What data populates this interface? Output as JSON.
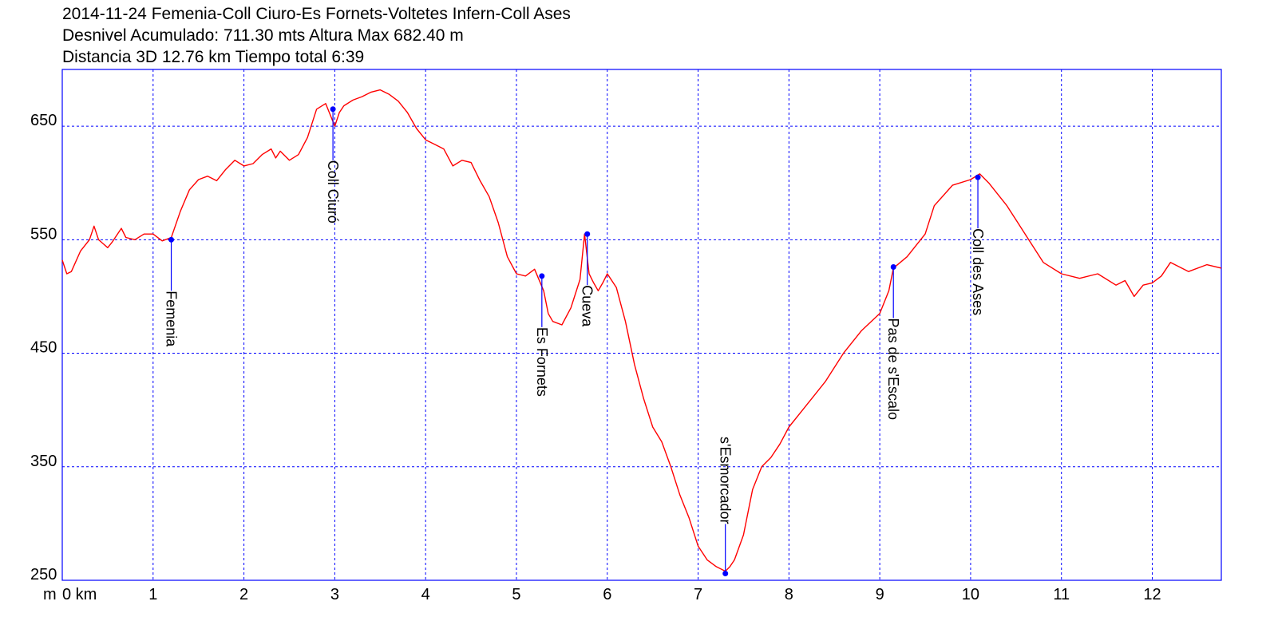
{
  "header": {
    "line1": "2014-11-24 Femenia-Coll Ciuro-Es Fornets-Voltetes Infern-Coll Ases",
    "line2": "Desnivel Acumulado: 711.30 mts  Altura Max 682.40 m",
    "line3": "Distancia 3D 12.76 km  Tiempo total 6:39"
  },
  "colors": {
    "frame": "#0000ff",
    "grid": "#0000ff",
    "profile": "#ff0000",
    "waypoint": "#0000ff",
    "text": "#000000"
  },
  "chart_data": {
    "type": "line",
    "title": "2014-11-24 Femenia-Coll Ciuro-Es Fornets-Voltetes Infern-Coll Ases",
    "xlabel": "km",
    "ylabel": "m",
    "xlim": [
      0,
      12.76
    ],
    "ylim": [
      250,
      700
    ],
    "grid": true,
    "y_ticks": [
      {
        "value": 250,
        "label": "250"
      },
      {
        "value": 350,
        "label": "350"
      },
      {
        "value": 450,
        "label": "450"
      },
      {
        "value": 550,
        "label": "550"
      },
      {
        "value": 650,
        "label": "650"
      }
    ],
    "x_ticks": [
      {
        "value": 0,
        "label": "0 km"
      },
      {
        "value": 1,
        "label": "1"
      },
      {
        "value": 2,
        "label": "2"
      },
      {
        "value": 3,
        "label": "3"
      },
      {
        "value": 4,
        "label": "4"
      },
      {
        "value": 5,
        "label": "5"
      },
      {
        "value": 6,
        "label": "6"
      },
      {
        "value": 7,
        "label": "7"
      },
      {
        "value": 8,
        "label": "8"
      },
      {
        "value": 9,
        "label": "9"
      },
      {
        "value": 10,
        "label": "10"
      },
      {
        "value": 11,
        "label": "11"
      },
      {
        "value": 12,
        "label": "12"
      }
    ],
    "series": [
      {
        "x": [
          0,
          0.05,
          0.1,
          0.2,
          0.3,
          0.35,
          0.4,
          0.5,
          0.55,
          0.6,
          0.65,
          0.7,
          0.8,
          0.9,
          1.0,
          1.1,
          1.2,
          1.3,
          1.4,
          1.5,
          1.6,
          1.7,
          1.8,
          1.9,
          2.0,
          2.1,
          2.2,
          2.3,
          2.35,
          2.4,
          2.5,
          2.6,
          2.7,
          2.8,
          2.9,
          2.95,
          3.0,
          3.05,
          3.1,
          3.2,
          3.3,
          3.4,
          3.5,
          3.6,
          3.7,
          3.8,
          3.9,
          4.0,
          4.1,
          4.2,
          4.3,
          4.4,
          4.5,
          4.6,
          4.7,
          4.8,
          4.9,
          5.0,
          5.1,
          5.2,
          5.3,
          5.35,
          5.4,
          5.5,
          5.6,
          5.7,
          5.75,
          5.8,
          5.85,
          5.9,
          5.95,
          6.0,
          6.1,
          6.2,
          6.3,
          6.4,
          6.5,
          6.6,
          6.7,
          6.8,
          6.9,
          7.0,
          7.1,
          7.2,
          7.3,
          7.35,
          7.4,
          7.5,
          7.6,
          7.7,
          7.8,
          7.9,
          8.0,
          8.2,
          8.4,
          8.6,
          8.8,
          9.0,
          9.1,
          9.15,
          9.3,
          9.5,
          9.6,
          9.8,
          10.0,
          10.1,
          10.2,
          10.4,
          10.6,
          10.8,
          11.0,
          11.2,
          11.4,
          11.6,
          11.7,
          11.8,
          11.9,
          12.0,
          12.1,
          12.2,
          12.4,
          12.6,
          12.76
        ],
        "y": [
          532,
          520,
          522,
          540,
          550,
          562,
          550,
          543,
          548,
          554,
          560,
          552,
          550,
          555,
          555,
          549,
          552,
          575,
          594,
          603,
          606,
          602,
          612,
          620,
          615,
          617,
          625,
          630,
          622,
          628,
          620,
          625,
          640,
          665,
          670,
          660,
          650,
          662,
          668,
          673,
          676,
          680,
          682,
          678,
          672,
          662,
          648,
          638,
          634,
          630,
          615,
          620,
          618,
          602,
          588,
          565,
          535,
          520,
          518,
          524,
          505,
          485,
          478,
          475,
          490,
          515,
          555,
          520,
          512,
          505,
          512,
          520,
          508,
          478,
          440,
          410,
          385,
          372,
          350,
          325,
          305,
          280,
          268,
          262,
          258,
          262,
          268,
          290,
          330,
          350,
          358,
          370,
          385,
          405,
          425,
          450,
          470,
          485,
          505,
          525,
          535,
          555,
          580,
          598,
          603,
          608,
          600,
          580,
          555,
          530,
          520,
          516,
          520,
          510,
          514,
          500,
          510,
          512,
          518,
          530,
          522,
          528,
          525
        ]
      }
    ],
    "waypoints": [
      {
        "label": "Femenia",
        "x": 1.2,
        "y": 550
      },
      {
        "label": "Coll Ciuró",
        "x": 2.98,
        "y": 665
      },
      {
        "label": "Es Fornets",
        "x": 5.28,
        "y": 518
      },
      {
        "label": "Cueva",
        "x": 5.78,
        "y": 555
      },
      {
        "label": "s'Esmorcador",
        "x": 7.3,
        "y": 256
      },
      {
        "label": "Pas de s'Escalo",
        "x": 9.15,
        "y": 526
      },
      {
        "label": "Coll des Ases",
        "x": 10.08,
        "y": 605
      }
    ]
  }
}
